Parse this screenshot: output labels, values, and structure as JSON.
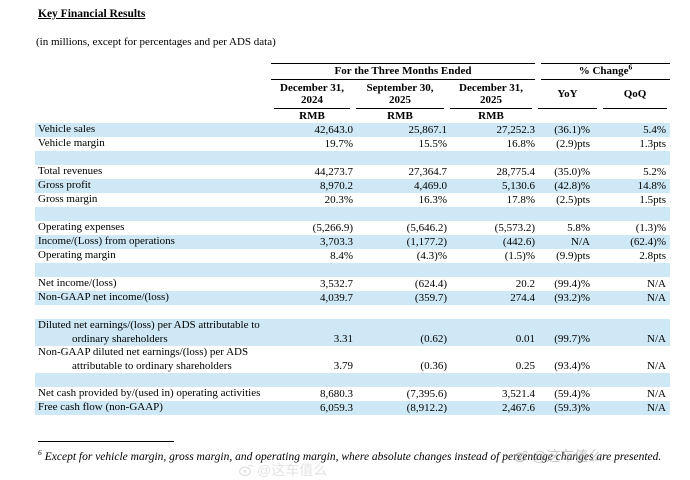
{
  "page": {
    "title": "Key Financial Results",
    "subtitle": "(in millions, except for percentages and per ADS data)"
  },
  "table": {
    "group_headers": {
      "period": "For the Three Months Ended",
      "change": "% Change",
      "change_superscript": "6"
    },
    "period_columns": [
      {
        "line1": "December 31,",
        "line2": "2024",
        "unit": "RMB"
      },
      {
        "line1": "September 30,",
        "line2": "2025",
        "unit": "RMB"
      },
      {
        "line1": "December 31,",
        "line2": "2025",
        "unit": "RMB"
      }
    ],
    "change_columns": {
      "yoy": "YoY",
      "qoq": "QoQ"
    },
    "rows": [
      {
        "label": "Vehicle sales",
        "values": [
          "42,643.0",
          "25,867.1",
          "27,252.3",
          "(36.1)%",
          "5.4%"
        ],
        "highlight": true
      },
      {
        "label": "Vehicle margin",
        "values": [
          "19.7%",
          "15.5%",
          "16.8%",
          "(2.9)pts",
          "1.3pts"
        ],
        "highlight": false
      },
      {
        "spacer": true,
        "highlight": true
      },
      {
        "label": "Total revenues",
        "values": [
          "44,273.7",
          "27,364.7",
          "28,775.4",
          "(35.0)%",
          "5.2%"
        ],
        "highlight": false
      },
      {
        "label": "Gross profit",
        "values": [
          "8,970.2",
          "4,469.0",
          "5,130.6",
          "(42.8)%",
          "14.8%"
        ],
        "highlight": true
      },
      {
        "label": "Gross margin",
        "values": [
          "20.3%",
          "16.3%",
          "17.8%",
          "(2.5)pts",
          "1.5pts"
        ],
        "highlight": false
      },
      {
        "spacer": true,
        "highlight": true
      },
      {
        "label": "Operating expenses",
        "values": [
          "(5,266.9)",
          "(5,646.2)",
          "(5,573.2)",
          "5.8%",
          "(1.3)%"
        ],
        "highlight": false
      },
      {
        "label": "Income/(Loss) from operations",
        "values": [
          "3,703.3",
          "(1,177.2)",
          "(442.6)",
          "N/A",
          "(62.4)%"
        ],
        "highlight": true
      },
      {
        "label": "Operating margin",
        "values": [
          "8.4%",
          "(4.3)%",
          "(1.5)%",
          "(9.9)pts",
          "2.8pts"
        ],
        "highlight": false
      },
      {
        "spacer": true,
        "highlight": true
      },
      {
        "label": "Net income/(loss)",
        "values": [
          "3,532.7",
          "(624.4)",
          "20.2",
          "(99.4)%",
          "N/A"
        ],
        "highlight": false
      },
      {
        "label": "Non-GAAP net income/(loss)",
        "values": [
          "4,039.7",
          "(359.7)",
          "274.4",
          "(93.2)%",
          "N/A"
        ],
        "highlight": true
      },
      {
        "spacer": true,
        "highlight": false
      },
      {
        "label": "Diluted net earnings/(loss) per ADS attributable to ordinary shareholders",
        "values": [
          "3.31",
          "(0.62)",
          "0.01",
          "(99.7)%",
          "N/A"
        ],
        "highlight": true
      },
      {
        "label": "Non-GAAP diluted net earnings/(loss) per ADS attributable to ordinary shareholders",
        "values": [
          "3.79",
          "(0.36)",
          "0.25",
          "(93.4)%",
          "N/A"
        ],
        "highlight": false
      },
      {
        "spacer": true,
        "highlight": true
      },
      {
        "label": "Net cash provided by/(used in) operating activities",
        "values": [
          "8,680.3",
          "(7,395.6)",
          "3,521.4",
          "(59.4)%",
          "N/A"
        ],
        "highlight": false
      },
      {
        "label": "Free cash flow (non-GAAP)",
        "values": [
          "6,059.3",
          "(8,912.2)",
          "2,467.6",
          "(59.3)%",
          "N/A"
        ],
        "highlight": true
      }
    ]
  },
  "footnote": {
    "marker": "6",
    "text": "Except for vehicle margin, gross margin, and operating margin, where absolute changes instead of percentage changes are presented."
  },
  "watermark": {
    "text": "@这车值么"
  },
  "colors": {
    "highlight": "#cfe8f5",
    "watermark_gray": "#9a9a9a"
  }
}
